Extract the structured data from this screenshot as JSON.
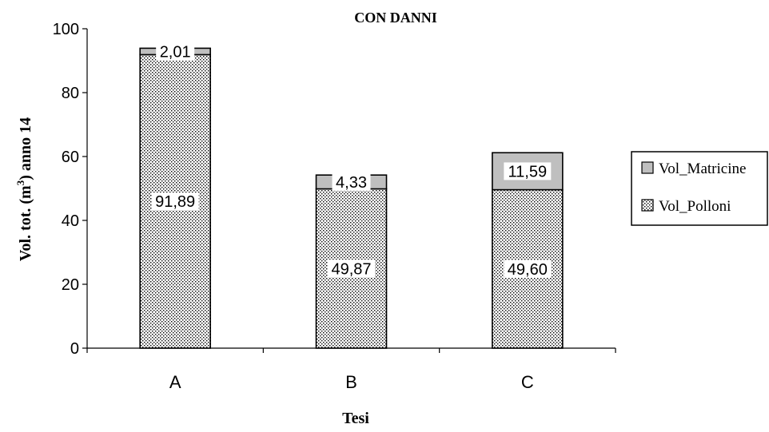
{
  "chart_data": {
    "type": "bar",
    "stacked": true,
    "title": "CON DANNI",
    "xlabel": "Tesi",
    "ylabel_main": "Vol. tot. (m",
    "ylabel_sup": "3",
    "ylabel_rest": ") anno 14",
    "categories": [
      "A",
      "B",
      "C"
    ],
    "ylim": [
      0,
      100
    ],
    "yticks": [
      0,
      20,
      40,
      60,
      80,
      100
    ],
    "series": [
      {
        "name": "Vol_Polloni",
        "values": [
          91.89,
          49.87,
          49.6
        ],
        "labels": [
          "91,89",
          "49,87",
          "49,60"
        ],
        "pattern": "dotted"
      },
      {
        "name": "Vol_Matricine",
        "values": [
          2.01,
          4.33,
          11.59
        ],
        "labels": [
          "2,01",
          "4,33",
          "11,59"
        ],
        "color": "#bfbfbf"
      }
    ],
    "legend": {
      "position": "right",
      "entries": [
        "Vol_Matricine",
        "Vol_Polloni"
      ]
    },
    "grid": false
  }
}
